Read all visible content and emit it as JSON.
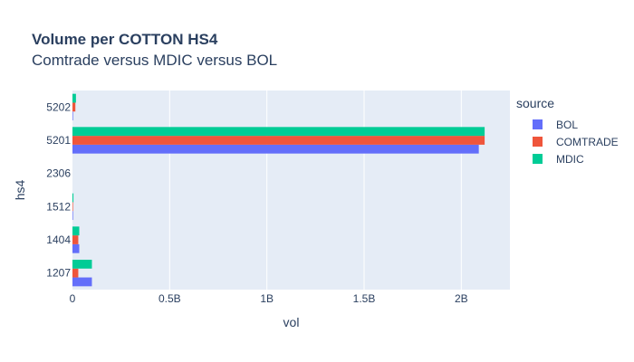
{
  "chart_data": {
    "type": "bar",
    "orientation": "horizontal",
    "title": "Volume per COTTON HS4",
    "subtitle": "Comtrade versus MDIC versus BOL",
    "xlabel": "vol",
    "ylabel": "hs4",
    "categories": [
      "1207",
      "1404",
      "1512",
      "2306",
      "5201",
      "5202"
    ],
    "xlim": [
      0,
      2.25
    ],
    "x_ticks": [
      0,
      0.5,
      1,
      1.5,
      2
    ],
    "x_tick_labels": [
      "0",
      "0.5B",
      "1B",
      "1.5B",
      "2B"
    ],
    "legend": {
      "title": "source",
      "position": "right"
    },
    "series": [
      {
        "name": "BOL",
        "color": "#636efa",
        "values": [
          0.1,
          0.035,
          0.003,
          0,
          2.09,
          0.003
        ]
      },
      {
        "name": "COMTRADE",
        "color": "#ef553b",
        "values": [
          0.03,
          0.03,
          0.003,
          0,
          2.12,
          0.015
        ]
      },
      {
        "name": "MDIC",
        "color": "#00cc96",
        "values": [
          0.1,
          0.035,
          0.005,
          0,
          2.12,
          0.018
        ]
      }
    ]
  }
}
